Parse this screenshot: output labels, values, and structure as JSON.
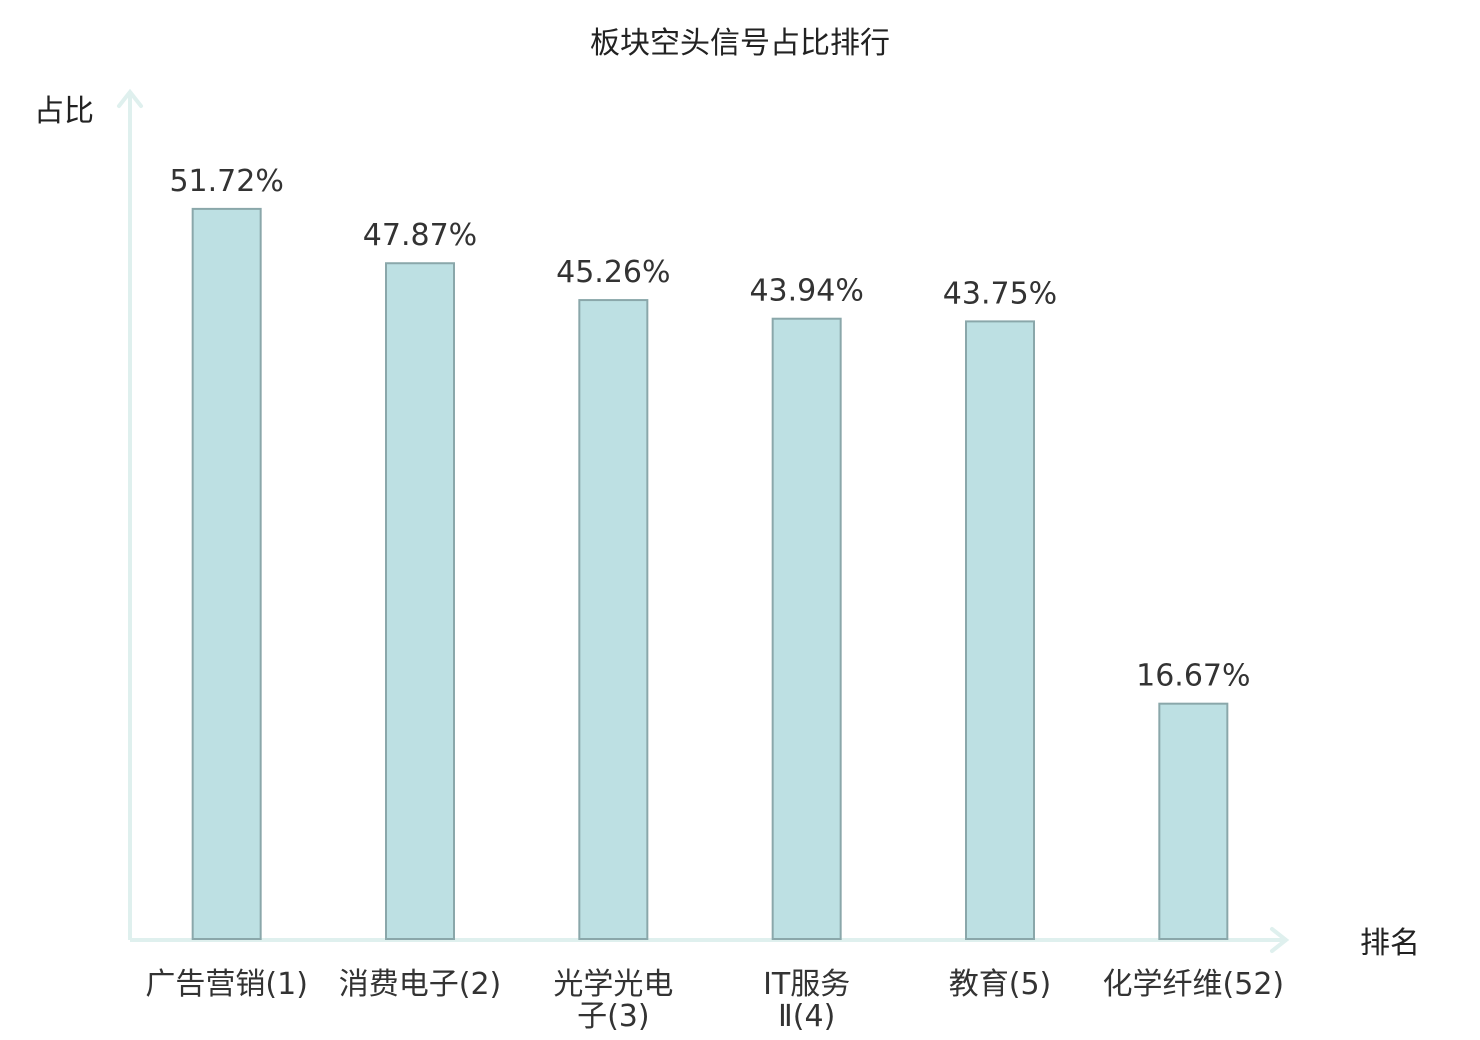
{
  "chart_data": {
    "type": "bar",
    "title": "板块空头信号占比排行",
    "xlabel": "排名",
    "ylabel": "占比",
    "categories": [
      [
        "广告营销(1)"
      ],
      [
        "消费电子(2)"
      ],
      [
        "光学光电",
        "子(3)"
      ],
      [
        "IT服务",
        "Ⅱ(4)"
      ],
      [
        "教育(5)"
      ],
      [
        "化学纤维(52)"
      ]
    ],
    "values": [
      51.72,
      47.87,
      45.26,
      43.94,
      43.75,
      16.67
    ],
    "value_labels": [
      "51.72%",
      "47.87%",
      "45.26%",
      "43.94%",
      "43.75%",
      "16.67%"
    ],
    "highlight_index": 5,
    "ylim": [
      0,
      60
    ],
    "grid": false,
    "colors": {
      "bar_fill": "#bde0e3",
      "bar_stroke": "#8aa7aa",
      "axis": "#dff0ee",
      "highlight_text": "#e00000",
      "text": "#333333"
    }
  }
}
